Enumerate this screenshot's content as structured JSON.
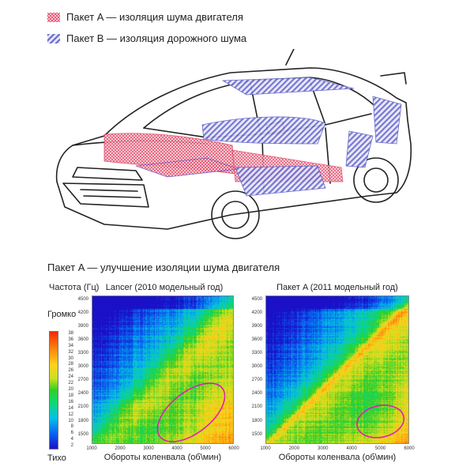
{
  "legend": {
    "package_a": {
      "label": "Пакет A — изоляция шума двигателя",
      "color": "#e04060",
      "pattern": "crosshatch"
    },
    "package_b": {
      "label": "Пакет B — изоляция дорожного шума",
      "color": "#5a5ac8",
      "pattern": "diagonal-stripes"
    }
  },
  "section_title": "Пакет A — улучшение изоляции шума двигателя",
  "frequency_axis_label": "Частота (Гц)",
  "colorbar": {
    "loud_label": "Громко",
    "quiet_label": "Тихо",
    "ticks": [
      "38",
      "36",
      "34",
      "32",
      "30",
      "28",
      "26",
      "24",
      "22",
      "20",
      "18",
      "16",
      "14",
      "12",
      "10",
      "8",
      "6",
      "4",
      "2"
    ]
  },
  "chart_data": [
    {
      "type": "heatmap",
      "title": "Lancer (2010 модельный год)",
      "xlabel": "Обороты коленвала (об\\мин)",
      "ylabel": "Частота (Гц)",
      "x_ticks": [
        "1000",
        "2000",
        "3000",
        "4000",
        "5000",
        "6000"
      ],
      "y_ticks": [
        "4500",
        "4200",
        "3900",
        "3600",
        "3300",
        "3000",
        "2700",
        "2400",
        "2100",
        "1800",
        "1500"
      ],
      "xlim": [
        1000,
        6000
      ],
      "ylim": [
        1300,
        4600
      ],
      "highlight": {
        "shape": "ellipse",
        "color": "#e020b0",
        "center_rpm": 4500,
        "center_hz": 2000
      }
    },
    {
      "type": "heatmap",
      "title": "Пакет A (2011 модельный год)",
      "xlabel": "Обороты коленвала (об\\мин)",
      "ylabel": "Частота (Гц)",
      "x_ticks": [
        "1000",
        "2000",
        "3000",
        "4000",
        "5000",
        "6000"
      ],
      "y_ticks": [
        "4500",
        "4200",
        "3900",
        "3600",
        "3300",
        "3000",
        "2700",
        "2400",
        "2100",
        "1800",
        "1500"
      ],
      "xlim": [
        1000,
        6000
      ],
      "ylim": [
        1300,
        4600
      ],
      "highlight": {
        "shape": "ellipse",
        "color": "#e020b0",
        "center_rpm": 5000,
        "center_hz": 1800
      }
    }
  ]
}
